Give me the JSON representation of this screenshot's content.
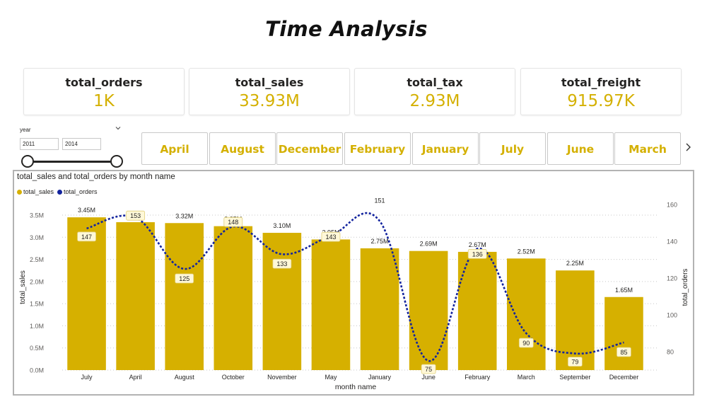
{
  "page": {
    "title": "Time Analysis"
  },
  "kpis": [
    {
      "label": "total_orders",
      "value": "1K"
    },
    {
      "label": "total_sales",
      "value": "33.93M"
    },
    {
      "label": "total_tax",
      "value": "2.93M"
    },
    {
      "label": "total_freight",
      "value": "915.97K"
    }
  ],
  "slicer": {
    "title": "year",
    "from": "2011",
    "to": "2014",
    "chevron": "chevron-down-icon"
  },
  "month_buttons": {
    "labels": [
      "April",
      "August",
      "December",
      "February",
      "January",
      "July",
      "June",
      "March"
    ],
    "next_icon": "chevron-right-icon"
  },
  "colors": {
    "accent": "#d4b000",
    "bar": "#d6b000",
    "line": "#12239e"
  },
  "chart_data": {
    "type": "bar",
    "title": "total_sales and total_orders by month name",
    "xlabel": "month name",
    "ylabel": "total_sales",
    "y2label": "total_orders",
    "categories": [
      "July",
      "April",
      "August",
      "October",
      "November",
      "May",
      "January",
      "June",
      "February",
      "March",
      "September",
      "December"
    ],
    "series": [
      {
        "name": "total_sales",
        "type": "bar",
        "values": [
          3.45,
          3.34,
          3.32,
          3.25,
          3.1,
          2.95,
          2.75,
          2.69,
          2.67,
          2.52,
          2.25,
          1.65
        ],
        "labels": [
          "3.45M",
          "3.34M",
          "3.32M",
          "3.25M",
          "3.10M",
          "2.95M",
          "2.75M",
          "2.69M",
          "2.67M",
          "2.52M",
          "2.25M",
          "1.65M"
        ]
      },
      {
        "name": "total_orders",
        "type": "line",
        "values": [
          147,
          153,
          125,
          148,
          133,
          143,
          151,
          75,
          136,
          90,
          79,
          85
        ],
        "labels": [
          "147",
          "153",
          "125",
          "148",
          "133",
          "143",
          "151",
          "75",
          "136",
          "90",
          "79",
          "85"
        ]
      }
    ],
    "ylim": [
      0,
      3.5
    ],
    "y_ticks": [
      "0.0M",
      "0.5M",
      "1.0M",
      "1.5M",
      "2.0M",
      "2.5M",
      "3.0M",
      "3.5M"
    ],
    "y2lim": [
      70,
      160
    ],
    "y2_ticks": [
      "80",
      "100",
      "120",
      "140",
      "160"
    ],
    "grid": true,
    "legend_position": "top-left"
  }
}
